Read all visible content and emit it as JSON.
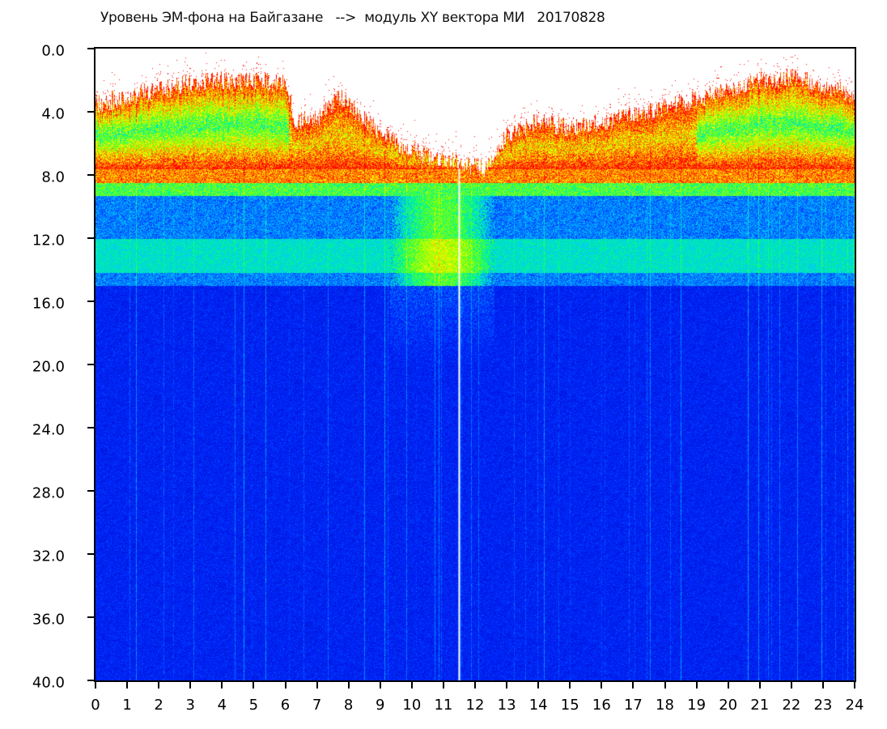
{
  "chart_data": {
    "type": "heatmap",
    "title": "Уровень ЭМ-фона на Байгазане   -->  модуль XY вектора МИ   20170828",
    "xlabel": "",
    "ylabel": "",
    "xlim": [
      0,
      24
    ],
    "ylim": [
      40,
      0
    ],
    "y_inverted": true,
    "x_ticks": [
      "0",
      "1",
      "2",
      "3",
      "4",
      "5",
      "6",
      "7",
      "8",
      "9",
      "10",
      "11",
      "12",
      "13",
      "14",
      "15",
      "16",
      "17",
      "18",
      "19",
      "20",
      "21",
      "22",
      "23",
      "24"
    ],
    "y_ticks": [
      "0.0",
      "4.0",
      "8.0",
      "12.0",
      "16.0",
      "20.0",
      "24.0",
      "28.0",
      "32.0",
      "36.0",
      "40.0"
    ],
    "grid": false,
    "colorscale": [
      "#0000b4",
      "#0028ff",
      "#00c8ff",
      "#00ff80",
      "#80ff00",
      "#ffff00",
      "#ff8000",
      "#ff0000"
    ],
    "signal_top_edge_by_hour": [
      [
        0,
        3.5
      ],
      [
        1,
        3
      ],
      [
        2,
        2.6
      ],
      [
        3,
        2.2
      ],
      [
        4,
        2
      ],
      [
        5,
        2
      ],
      [
        6,
        2.2
      ],
      [
        6.3,
        4.5
      ],
      [
        7,
        4.5
      ],
      [
        7.7,
        3
      ],
      [
        8.5,
        4.5
      ],
      [
        9.5,
        6
      ],
      [
        10.5,
        6.8
      ],
      [
        11.5,
        7.2
      ],
      [
        12.3,
        7.6
      ],
      [
        13,
        5.5
      ],
      [
        14,
        4.6
      ],
      [
        15,
        5
      ],
      [
        16,
        4.6
      ],
      [
        17,
        4.2
      ],
      [
        18,
        3.8
      ],
      [
        19,
        3.2
      ],
      [
        20,
        2.6
      ],
      [
        21,
        2
      ],
      [
        22,
        1.8
      ],
      [
        23,
        2.3
      ],
      [
        24,
        3
      ]
    ],
    "gap_line_hour": 11.5
  }
}
